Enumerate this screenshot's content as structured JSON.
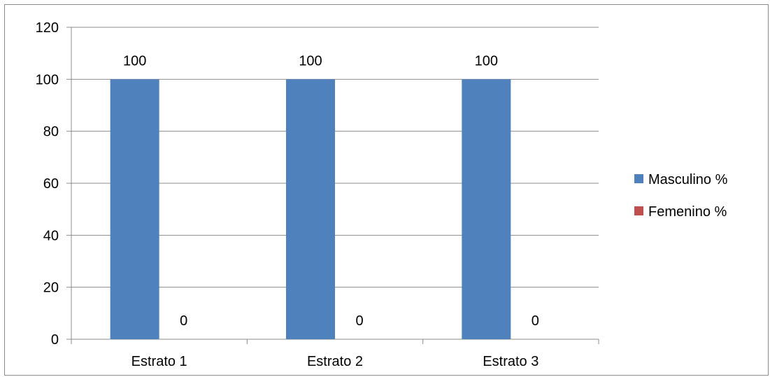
{
  "chart_data": {
    "type": "bar",
    "title": "",
    "xlabel": "",
    "ylabel": "",
    "categories": [
      "Estrato 1",
      "Estrato 2",
      "Estrato 3"
    ],
    "series": [
      {
        "name": "Masculino %",
        "values": [
          100,
          100,
          100
        ],
        "color": "#4F81BD"
      },
      {
        "name": "Femenino %",
        "values": [
          0,
          0,
          0
        ],
        "color": "#C0504D"
      }
    ],
    "ylim": [
      0,
      120
    ],
    "yticks": [
      0,
      20,
      40,
      60,
      80,
      100,
      120
    ],
    "grid": true,
    "legend": "right",
    "data_labels": true
  }
}
